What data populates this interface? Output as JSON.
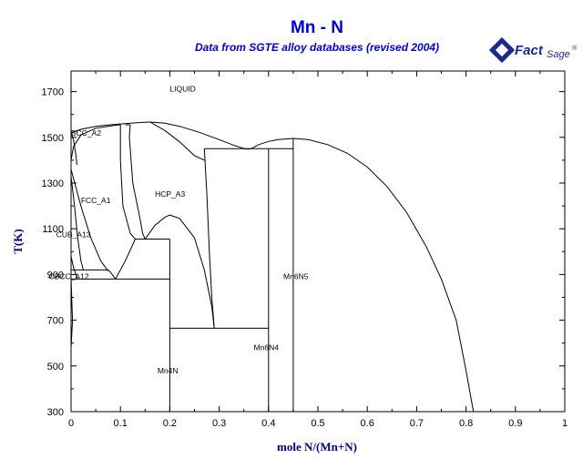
{
  "chart_data": {
    "type": "line",
    "title": "Mn - N",
    "subtitle": "Data from SGTE alloy databases (revised 2004)",
    "xlabel": "mole N/(Mn+N)",
    "ylabel": "T(K)",
    "xlim": [
      0,
      1
    ],
    "ylim": [
      300,
      1790
    ],
    "x_ticks": [
      "0",
      "0.1",
      "0.2",
      "0.3",
      "0.4",
      "0.5",
      "0.6",
      "0.7",
      "0.8",
      "0.9",
      "1"
    ],
    "y_ticks": [
      "300",
      "500",
      "700",
      "900",
      "1100",
      "1300",
      "1500",
      "1700"
    ],
    "phase_labels": [
      {
        "text": "LIQUID",
        "x": 0.2,
        "y": 1700
      },
      {
        "text": "BCC_A2",
        "x": 0.0,
        "y": 1508
      },
      {
        "text": "FCC_A1",
        "x": 0.02,
        "y": 1212
      },
      {
        "text": "HCP_A3",
        "x": 0.17,
        "y": 1240
      },
      {
        "text": "CUB_A13",
        "x": -0.03,
        "y": 1063
      },
      {
        "text": "CBCC_A12",
        "x": -0.045,
        "y": 880
      },
      {
        "text": "Mn6N5",
        "x": 0.43,
        "y": 880
      },
      {
        "text": "Mn6N4",
        "x": 0.37,
        "y": 568
      },
      {
        "text": "Mn4N",
        "x": 0.175,
        "y": 468
      }
    ],
    "series": [
      {
        "points": [
          [
            0,
            1519
          ],
          [
            0.02,
            1535
          ],
          [
            0.05,
            1548
          ],
          [
            0.08,
            1555
          ],
          [
            0.11,
            1560
          ],
          [
            0.14,
            1565
          ],
          [
            0.16,
            1567
          ]
        ]
      },
      {
        "points": [
          [
            0.16,
            1567
          ],
          [
            0.19,
            1562
          ],
          [
            0.22,
            1548
          ],
          [
            0.26,
            1522
          ],
          [
            0.3,
            1490
          ],
          [
            0.33,
            1465
          ],
          [
            0.355,
            1448
          ],
          [
            0.365,
            1450
          ],
          [
            0.38,
            1468
          ],
          [
            0.4,
            1482
          ],
          [
            0.42,
            1490
          ],
          [
            0.45,
            1495
          ],
          [
            0.48,
            1490
          ],
          [
            0.52,
            1468
          ],
          [
            0.56,
            1430
          ],
          [
            0.6,
            1370
          ],
          [
            0.64,
            1285
          ],
          [
            0.68,
            1170
          ],
          [
            0.72,
            1020
          ],
          [
            0.75,
            880
          ],
          [
            0.78,
            700
          ],
          [
            0.8,
            480
          ],
          [
            0.815,
            300
          ]
        ]
      },
      {
        "points": [
          [
            0,
            1519
          ],
          [
            0.005,
            1490
          ],
          [
            0.01,
            1420
          ],
          [
            0.012,
            1380
          ]
        ]
      },
      {
        "points": [
          [
            0,
            1400
          ],
          [
            0.005,
            1460
          ],
          [
            0.02,
            1510
          ],
          [
            0.05,
            1540
          ],
          [
            0.09,
            1553
          ],
          [
            0.1,
            1555
          ]
        ]
      },
      {
        "points": [
          [
            0,
            1360
          ],
          [
            0.02,
            1200
          ],
          [
            0.04,
            1060
          ],
          [
            0.06,
            960
          ],
          [
            0.075,
            915
          ]
        ]
      },
      {
        "points": [
          [
            0,
            1330
          ],
          [
            0.007,
            1200
          ],
          [
            0.013,
            1070
          ],
          [
            0.02,
            960
          ],
          [
            0.025,
            920
          ]
        ]
      },
      {
        "points": [
          [
            0,
            920
          ],
          [
            0.02,
            920
          ],
          [
            0.075,
            920
          ]
        ]
      },
      {
        "points": [
          [
            0.075,
            920
          ],
          [
            0.08,
            910
          ],
          [
            0.09,
            880
          ]
        ]
      },
      {
        "points": [
          [
            0,
            880
          ],
          [
            0.1,
            880
          ],
          [
            0.2,
            880
          ]
        ]
      },
      {
        "points": [
          [
            0.09,
            880
          ],
          [
            0.11,
            960
          ],
          [
            0.13,
            1055
          ]
        ]
      },
      {
        "points": [
          [
            0.1,
            1555
          ],
          [
            0.1,
            1400
          ],
          [
            0.105,
            1200
          ],
          [
            0.12,
            1080
          ],
          [
            0.13,
            1055
          ]
        ]
      },
      {
        "points": [
          [
            0.12,
            1555
          ],
          [
            0.118,
            1500
          ],
          [
            0.125,
            1300
          ],
          [
            0.14,
            1140
          ],
          [
            0.145,
            1080
          ],
          [
            0.15,
            1055
          ]
        ]
      },
      {
        "points": [
          [
            0.11,
            1555
          ],
          [
            0.12,
            1555
          ]
        ]
      },
      {
        "points": [
          [
            0.13,
            1055
          ],
          [
            0.2,
            1055
          ]
        ]
      },
      {
        "points": [
          [
            0.2,
            1055
          ],
          [
            0.2,
            300
          ]
        ]
      },
      {
        "points": [
          [
            0.16,
            1567
          ],
          [
            0.19,
            1530
          ],
          [
            0.22,
            1480
          ],
          [
            0.25,
            1420
          ],
          [
            0.27,
            1400
          ]
        ]
      },
      {
        "points": [
          [
            0.15,
            1055
          ],
          [
            0.17,
            1115
          ],
          [
            0.19,
            1150
          ],
          [
            0.2,
            1160
          ],
          [
            0.22,
            1145
          ],
          [
            0.25,
            1060
          ],
          [
            0.27,
            920
          ],
          [
            0.285,
            760
          ],
          [
            0.29,
            665
          ]
        ]
      },
      {
        "points": [
          [
            0.27,
            1450
          ],
          [
            0.275,
            1250
          ],
          [
            0.28,
            1000
          ],
          [
            0.285,
            800
          ],
          [
            0.29,
            665
          ]
        ]
      },
      {
        "points": [
          [
            0.27,
            1450
          ],
          [
            0.45,
            1450
          ]
        ]
      },
      {
        "points": [
          [
            0.2,
            665
          ],
          [
            0.29,
            665
          ],
          [
            0.4,
            665
          ]
        ]
      },
      {
        "points": [
          [
            0.4,
            1450
          ],
          [
            0.4,
            300
          ]
        ]
      },
      {
        "points": [
          [
            0.45,
            1495
          ],
          [
            0.45,
            1450
          ],
          [
            0.45,
            300
          ]
        ]
      },
      {
        "points": [
          [
            0.0,
            980
          ],
          [
            0.005,
            930
          ],
          [
            0.01,
            900
          ],
          [
            0.013,
            880
          ]
        ]
      },
      {
        "points": [
          [
            0.0,
            880
          ],
          [
            0.003,
            700
          ],
          [
            0.0,
            580
          ]
        ]
      }
    ]
  },
  "logo": {
    "fact": "Fact",
    "sage": "Sage",
    "tm": "®"
  }
}
